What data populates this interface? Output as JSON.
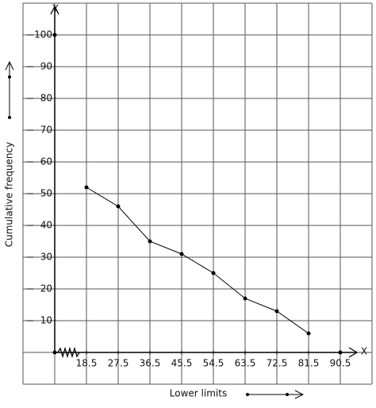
{
  "chart_data": {
    "type": "line",
    "x_label": "Lower limits",
    "y_label": "Cumulative frequency",
    "x_axis_name": "X",
    "y_axis_name": "Y",
    "x": [
      18.5,
      27.5,
      36.5,
      45.5,
      54.5,
      63.5,
      72.5,
      81.5
    ],
    "series": [
      {
        "color": "#000000",
        "values": [
          52,
          46,
          35,
          31,
          25,
          17,
          13,
          6
        ]
      }
    ],
    "xlim": [
      9.5,
      99.5
    ],
    "ylim": [
      0,
      110
    ],
    "xticks": [
      18.5,
      27.5,
      36.5,
      45.5,
      54.5,
      63.5,
      72.5,
      81.5,
      90.5
    ],
    "yticks": [
      10,
      20,
      30,
      40,
      50,
      60,
      70,
      80,
      90,
      100
    ],
    "grid": true
  }
}
